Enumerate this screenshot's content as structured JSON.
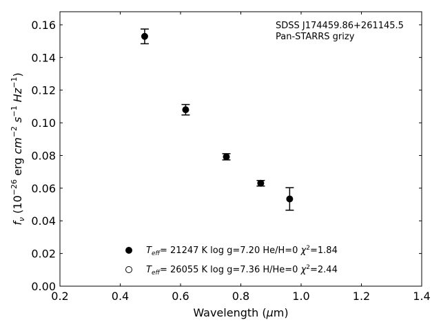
{
  "chart_data": {
    "type": "scatter",
    "title": "",
    "xlabel": {
      "pre": "Wavelength (",
      "greek": "μ",
      "post": "m)"
    },
    "ylabel": {
      "f": "f",
      "nu": "ν",
      "open": " (10",
      "exp1": "−26",
      "erg": " erg ",
      "cm": "cm",
      "exp2": "−2",
      "s": "s",
      "exp3": "−1",
      "hz": "Hz",
      "exp4": "−1",
      "close": ")"
    },
    "xlim": [
      0.2,
      1.4
    ],
    "ylim": [
      0.0,
      0.168
    ],
    "xticks": [
      0.2,
      0.4,
      0.6,
      0.8,
      1.0,
      1.2,
      1.4
    ],
    "xtick_labels": [
      "0.2",
      "0.4",
      "0.6",
      "0.8",
      "1.0",
      "1.2",
      "1.4"
    ],
    "yticks": [
      0.0,
      0.02,
      0.04,
      0.06,
      0.08,
      0.1,
      0.12,
      0.14,
      0.16
    ],
    "ytick_labels": [
      "0.00",
      "0.02",
      "0.04",
      "0.06",
      "0.08",
      "0.10",
      "0.12",
      "0.14",
      "0.16"
    ],
    "annotation": [
      "SDSS J174459.86+261145.5",
      "Pan-STARRS grizy"
    ],
    "series": [
      {
        "name": "= 21247 K  log g=7.20  He/H=0  χ²=1.84",
        "marker": "filled-circle",
        "color": "#000000",
        "x": [
          0.481,
          0.617,
          0.752,
          0.866,
          0.962
        ],
        "y": [
          0.1529,
          0.108,
          0.0792,
          0.063,
          0.0534
        ],
        "yerr": [
          0.0045,
          0.0032,
          0.0019,
          0.0017,
          0.0069
        ]
      },
      {
        "name": "= 26055 K  log g=7.36  H/He=0  χ²=2.44",
        "marker": "open-circle",
        "color": "#000000",
        "x": [],
        "y": []
      }
    ],
    "legend": {
      "placement": "lower-center",
      "entries": [
        {
          "prefix": "T",
          "sub": "eff",
          "text": "= 21247 K  log g=7.20  He/H=0  ",
          "chi": "χ",
          "sup": "2",
          "tail": "=1.84",
          "marker": "filled"
        },
        {
          "prefix": "T",
          "sub": "eff",
          "text": "= 26055 K  log g=7.36  H/He=0  ",
          "chi": "χ",
          "sup": "2",
          "tail": "=2.44",
          "marker": "open"
        }
      ]
    },
    "grid": false
  }
}
